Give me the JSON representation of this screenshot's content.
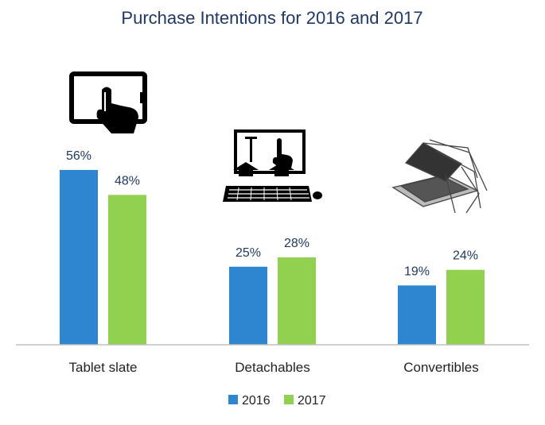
{
  "chart_data": {
    "type": "bar",
    "title": "Purchase Intentions for 2016 and 2017",
    "xlabel": "",
    "ylabel": "",
    "value_suffix": "%",
    "categories": [
      "Tablet slate",
      "Detachables",
      "Convertibles"
    ],
    "category_icons": [
      "tablet-touch-icon",
      "detachable-keyboard-icon",
      "convertible-laptop-icon"
    ],
    "series": [
      {
        "name": "2016",
        "color": "#2e86d0",
        "values": [
          56,
          25,
          19
        ]
      },
      {
        "name": "2017",
        "color": "#92d050",
        "values": [
          48,
          28,
          24
        ]
      }
    ],
    "ylim": [
      0,
      60
    ],
    "grid": false,
    "legend_position": "bottom"
  }
}
